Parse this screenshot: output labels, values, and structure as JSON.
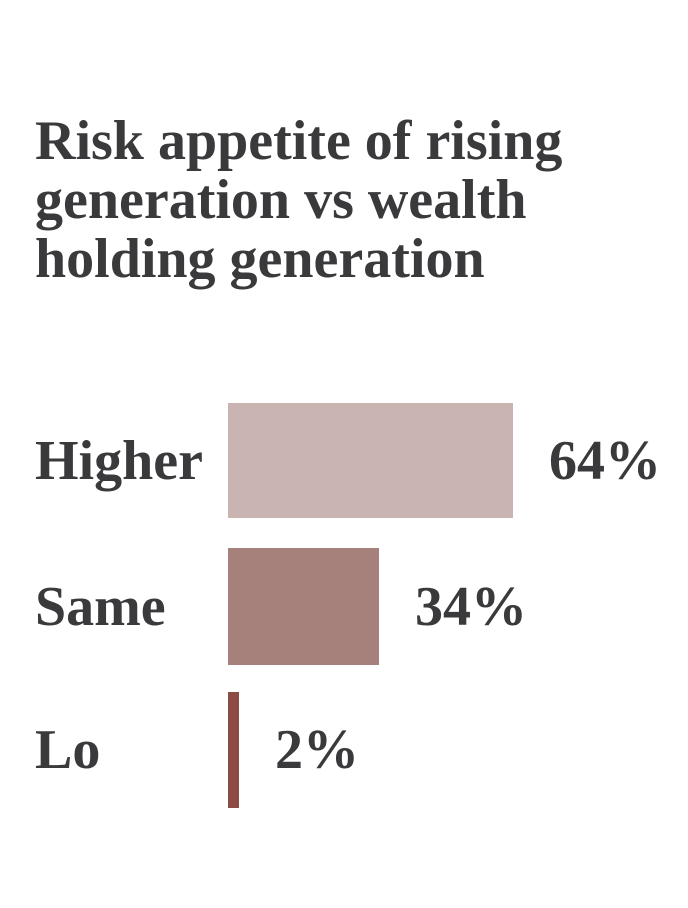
{
  "page": {
    "background_color": "#ffffff",
    "text_color": "#3a393c"
  },
  "header": {
    "title": "Risk appetite of rising generation vs wealth holding generation",
    "title_lines": [
      "Risk appetite of rising",
      "generation vs wealth",
      "holding generation"
    ]
  },
  "chart_data": {
    "type": "bar",
    "orientation": "horizontal",
    "title": "Risk appetite of rising generation vs wealth holding generation",
    "categories": [
      "Higher",
      "Same",
      "Lo"
    ],
    "values": [
      64,
      34,
      2
    ],
    "value_labels": [
      "64%",
      "34%",
      "2%"
    ],
    "bar_colors": [
      "#cab4b1",
      "#a6807a",
      "#8c4b43"
    ],
    "xlabel": "",
    "ylabel": "",
    "xlim": [
      0,
      64
    ],
    "grid": false,
    "legend": false,
    "axes_visible": false,
    "value_label_position": "right-of-bar",
    "category_label_position": "left-of-bar"
  }
}
